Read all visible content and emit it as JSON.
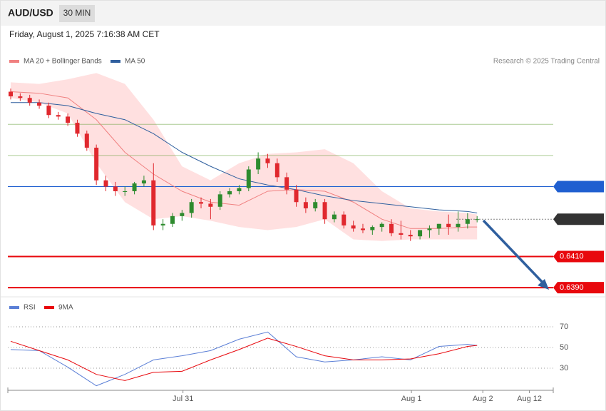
{
  "header": {
    "symbol": "AUD/USD",
    "timeframe": "30 MIN",
    "timestamp": "Friday, August 1, 2025 7:16:38 AM CET",
    "credit": "Research © 2025 Trading Central"
  },
  "chart_data": [
    {
      "type": "candlestick",
      "open": [
        0.6516,
        0.6513,
        0.6512,
        0.6509,
        0.6507,
        0.6501,
        0.65,
        0.6496,
        0.6489,
        0.648,
        0.6459,
        0.6455,
        0.6452,
        0.6452,
        0.6457,
        0.6459,
        0.643,
        0.6431,
        0.6436,
        0.6438,
        0.6445,
        0.6444,
        0.6442,
        0.645,
        0.6452,
        0.6454,
        0.6466,
        0.6473,
        0.647,
        0.6461,
        0.6453,
        0.6445,
        0.6441,
        0.6445,
        0.6434,
        0.6437,
        0.643,
        0.6428,
        0.6427,
        0.6429,
        0.6431,
        0.6425,
        0.6424,
        0.6423,
        0.6427,
        0.6428,
        0.6431,
        0.6429,
        0.6431,
        0.6434
      ],
      "high": [
        0.6518,
        0.6515,
        0.6514,
        0.6511,
        0.6509,
        0.6503,
        0.6502,
        0.6498,
        0.6491,
        0.6482,
        0.6462,
        0.6458,
        0.6455,
        0.6458,
        0.6462,
        0.647,
        0.6434,
        0.6438,
        0.644,
        0.6447,
        0.6448,
        0.6447,
        0.6452,
        0.6454,
        0.6456,
        0.6468,
        0.6477,
        0.6476,
        0.6473,
        0.6464,
        0.6456,
        0.6448,
        0.6447,
        0.6447,
        0.6439,
        0.6439,
        0.6433,
        0.6431,
        0.643,
        0.6432,
        0.6434,
        0.6433,
        0.6427,
        0.6427,
        0.643,
        0.6431,
        0.6437,
        0.6439,
        0.6438,
        0.6436
      ],
      "low": [
        0.6511,
        0.651,
        0.6507,
        0.6505,
        0.6499,
        0.6498,
        0.6494,
        0.6487,
        0.6478,
        0.6456,
        0.6452,
        0.6449,
        0.6449,
        0.645,
        0.6455,
        0.6427,
        0.6427,
        0.6429,
        0.6433,
        0.6435,
        0.6441,
        0.6434,
        0.644,
        0.6448,
        0.645,
        0.6452,
        0.6463,
        0.6467,
        0.6458,
        0.645,
        0.6442,
        0.6438,
        0.6439,
        0.6431,
        0.6432,
        0.6428,
        0.6426,
        0.6425,
        0.6424,
        0.6426,
        0.6423,
        0.6421,
        0.642,
        0.6421,
        0.6422,
        0.6424,
        0.6424,
        0.6426,
        0.6428,
        0.6432
      ],
      "close": [
        0.6513,
        0.6512,
        0.6509,
        0.6507,
        0.6501,
        0.65,
        0.6496,
        0.6489,
        0.648,
        0.6459,
        0.6455,
        0.6452,
        0.6452,
        0.6457,
        0.6459,
        0.643,
        0.6431,
        0.6436,
        0.6438,
        0.6445,
        0.6444,
        0.6442,
        0.645,
        0.6452,
        0.6454,
        0.6466,
        0.6473,
        0.647,
        0.6461,
        0.6453,
        0.6445,
        0.6441,
        0.6445,
        0.6434,
        0.6437,
        0.643,
        0.6428,
        0.6427,
        0.6429,
        0.6431,
        0.6425,
        0.6424,
        0.6423,
        0.6427,
        0.6428,
        0.6431,
        0.6429,
        0.6431,
        0.6434,
        0.6434
      ],
      "up_color": "#2e8b2e",
      "down_color": "#e0282e",
      "xlim": [
        0,
        57
      ],
      "ylim": [
        0.6385,
        0.653
      ],
      "indicator_x": [
        0,
        3,
        6,
        9,
        12,
        15,
        18,
        21,
        24,
        27,
        30,
        33,
        36,
        39,
        42,
        45,
        48,
        49
      ],
      "series": [
        {
          "name": "MA 20 + Bollinger Bands",
          "color": "#f08080",
          "band_color": "#ffe0e0",
          "values": [
            0.6516,
            0.6515,
            0.6512,
            0.6498,
            0.6477,
            0.6463,
            0.6452,
            0.6445,
            0.6443,
            0.6452,
            0.6453,
            0.6452,
            0.6445,
            0.6434,
            0.6428,
            0.6428,
            0.6429,
            0.6429
          ],
          "upper": [
            0.6522,
            0.6521,
            0.6524,
            0.6528,
            0.6521,
            0.6498,
            0.6468,
            0.6459,
            0.647,
            0.6476,
            0.6477,
            0.6479,
            0.647,
            0.6452,
            0.6441,
            0.6439,
            0.6438,
            0.6437
          ],
          "lower": [
            0.6512,
            0.6509,
            0.6502,
            0.647,
            0.6445,
            0.6434,
            0.6436,
            0.6433,
            0.6429,
            0.6427,
            0.6429,
            0.6434,
            0.6421,
            0.642,
            0.6421,
            0.6421,
            0.6421,
            0.6421
          ]
        },
        {
          "name": "MA 50",
          "color": "#2f5f9e",
          "values": [
            0.6509,
            0.6509,
            0.6507,
            0.6502,
            0.6498,
            0.6489,
            0.6477,
            0.6468,
            0.646,
            0.6456,
            0.6453,
            0.6449,
            0.6446,
            0.6444,
            0.6442,
            0.644,
            0.6439,
            0.6438
          ]
        }
      ],
      "levels": [
        {
          "value": 0.6495,
          "color": "#5a9a2a",
          "kind": "line"
        },
        {
          "value": 0.6475,
          "color": "#5a9a2a",
          "kind": "line"
        },
        {
          "value": 0.6455,
          "color": "#1f5fd0",
          "kind": "box"
        },
        {
          "value": 0.6434,
          "color": "#333333",
          "kind": "dotted"
        },
        {
          "value": 0.641,
          "label": "0.6410",
          "color": "#e8080d",
          "kind": "thick"
        },
        {
          "value": 0.639,
          "label": "0.6390",
          "color": "#e8080d",
          "kind": "thick"
        }
      ]
    },
    {
      "type": "line",
      "x": [
        0,
        3,
        6,
        9,
        12,
        15,
        18,
        21,
        24,
        27,
        30,
        33,
        36,
        39,
        42,
        45,
        48,
        49
      ],
      "series": [
        {
          "name": "RSI",
          "color": "#5b7fd6",
          "values": [
            48,
            47,
            31,
            13,
            24,
            38,
            42,
            47,
            58,
            65,
            41,
            36,
            38,
            41,
            38,
            51,
            53,
            52
          ]
        },
        {
          "name": "9MA",
          "color": "#e8080d",
          "values": [
            56,
            47,
            38,
            24,
            18,
            26,
            27,
            38,
            48,
            59,
            51,
            42,
            38,
            38,
            39,
            44,
            51,
            52
          ]
        }
      ],
      "xlim": [
        0,
        57
      ],
      "ylim": [
        10,
        80
      ],
      "yticks": [
        70,
        50,
        30
      ],
      "xticks": [
        {
          "value": 18.1,
          "label": "Jul 31"
        },
        {
          "value": 42.1,
          "label": "Aug 1"
        },
        {
          "value": 49.6,
          "label": "Aug 2"
        },
        {
          "value": 54.5,
          "label": "Aug 12"
        }
      ]
    }
  ]
}
